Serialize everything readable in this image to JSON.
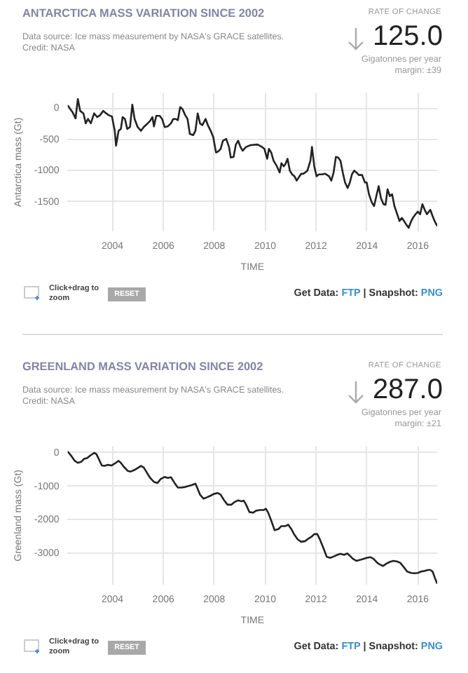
{
  "chart_data": [
    {
      "type": "line",
      "title": "ANTARCTICA MASS VARIATION SINCE 2002",
      "subtitle": "Data source: Ice mass measurement by NASA's GRACE satellites.",
      "xlabel": "TIME",
      "ylabel": "Antarctica mass (Gt)",
      "annotations": [
        "Credit: NASA",
        "RATE OF CHANGE",
        "125.0",
        "Gigatonnes per year",
        "margin: ±39",
        "Click+drag to zoom",
        "RESET",
        "Get Data:",
        "FTP",
        "|",
        "Snapshot:",
        "PNG"
      ],
      "x": [
        2002.24,
        2002.34,
        2002.43,
        2002.55,
        2002.64,
        2002.73,
        2002.86,
        2002.95,
        2003.04,
        2003.15,
        2003.28,
        2003.4,
        2003.51,
        2003.64,
        2003.75,
        2003.86,
        2003.98,
        2004.09,
        2004.14,
        2004.24,
        2004.33,
        2004.4,
        2004.49,
        2004.58,
        2004.69,
        2004.78,
        2004.87,
        2004.99,
        2005.12,
        2005.23,
        2005.36,
        2005.48,
        2005.57,
        2005.63,
        2005.72,
        2005.86,
        2005.95,
        2006.05,
        2006.17,
        2006.3,
        2006.39,
        2006.48,
        2006.57,
        2006.66,
        2006.75,
        2006.86,
        2006.95,
        2007.04,
        2007.17,
        2007.26,
        2007.35,
        2007.44,
        2007.53,
        2007.66,
        2007.75,
        2007.86,
        2007.96,
        2008.07,
        2008.16,
        2008.25,
        2008.34,
        2008.47,
        2008.58,
        2008.65,
        2008.76,
        2008.85,
        2008.94,
        2009.03,
        2009.12,
        2009.25,
        2009.43,
        2009.7,
        2009.88,
        2009.97,
        2010.08,
        2010.15,
        2010.24,
        2010.33,
        2010.46,
        2010.57,
        2010.64,
        2010.73,
        2010.79,
        2010.88,
        2010.97,
        2011.06,
        2011.15,
        2011.24,
        2011.35,
        2011.42,
        2011.51,
        2011.66,
        2011.78,
        2011.84,
        2011.93,
        2012.02,
        2012.11,
        2012.24,
        2012.36,
        2012.51,
        2012.6,
        2012.69,
        2012.78,
        2012.87,
        2012.96,
        2013.05,
        2013.14,
        2013.24,
        2013.33,
        2013.41,
        2013.5,
        2013.59,
        2013.68,
        2013.81,
        2013.92,
        2013.99,
        2014.08,
        2014.19,
        2014.28,
        2014.37,
        2014.46,
        2014.55,
        2014.65,
        2014.73,
        2014.81,
        2014.9,
        2014.99,
        2015.08,
        2015.19,
        2015.28,
        2015.37,
        2015.46,
        2015.55,
        2015.64,
        2015.73,
        2015.82,
        2015.91,
        2016.0,
        2016.09,
        2016.18,
        2016.27,
        2016.36,
        2016.49,
        2016.58,
        2016.67,
        2016.76
      ],
      "series": [
        {
          "color": "#222222",
          "values": [
            50,
            -10,
            -60,
            -160,
            150,
            -40,
            -80,
            -240,
            -170,
            -240,
            -80,
            -140,
            -110,
            -40,
            -80,
            -110,
            -130,
            -360,
            -600,
            -360,
            -330,
            -140,
            -170,
            -330,
            -300,
            60,
            -170,
            -300,
            -360,
            -300,
            -250,
            -200,
            -140,
            -290,
            -120,
            -120,
            -170,
            -300,
            -290,
            -240,
            -170,
            -170,
            -190,
            20,
            -10,
            -110,
            -170,
            -410,
            -430,
            -360,
            -80,
            -240,
            -270,
            -170,
            -270,
            -360,
            -460,
            -710,
            -690,
            -650,
            -520,
            -490,
            -620,
            -790,
            -780,
            -580,
            -520,
            -620,
            -680,
            -620,
            -590,
            -580,
            -620,
            -650,
            -810,
            -650,
            -710,
            -840,
            -930,
            -1030,
            -880,
            -930,
            -900,
            -810,
            -1000,
            -1060,
            -1090,
            -1160,
            -1090,
            -1050,
            -1050,
            -1000,
            -840,
            -620,
            -930,
            -1090,
            -1060,
            -1060,
            -1050,
            -1090,
            -1160,
            -1030,
            -780,
            -790,
            -840,
            -1030,
            -1190,
            -1280,
            -1190,
            -1060,
            -1000,
            -1030,
            -1070,
            -1070,
            -1190,
            -1190,
            -1380,
            -1510,
            -1570,
            -1410,
            -1250,
            -1440,
            -1540,
            -1550,
            -1300,
            -1410,
            -1380,
            -1570,
            -1700,
            -1810,
            -1760,
            -1810,
            -1870,
            -1920,
            -1820,
            -1750,
            -1700,
            -1660,
            -1700,
            -1540,
            -1630,
            -1700,
            -1630,
            -1730,
            -1820,
            -1890
          ]
        }
      ],
      "xlim": [
        2002.24,
        2016.76
      ],
      "xticks": [
        2004,
        2006,
        2008,
        2010,
        2012,
        2014,
        2016
      ],
      "ylim": [
        -1980,
        250
      ],
      "yticks": [
        0,
        -500,
        -1000,
        -1500
      ],
      "grid": true
    },
    {
      "type": "line",
      "title": "GREENLAND MASS VARIATION SINCE 2002",
      "subtitle": "Data source: Ice mass measurement by NASA's GRACE satellites.",
      "xlabel": "TIME",
      "ylabel": "Greenland mass (Gt)",
      "annotations": [
        "Credit: NASA",
        "RATE OF CHANGE",
        "287.0",
        "Gigatonnes per year",
        "margin: ±21",
        "Click+drag to zoom",
        "RESET",
        "Get Data:",
        "FTP",
        "|",
        "Snapshot:",
        "PNG"
      ],
      "x": [
        2002.24,
        2002.37,
        2002.52,
        2002.64,
        2002.77,
        2002.88,
        2003.0,
        2003.13,
        2003.28,
        2003.37,
        2003.46,
        2003.58,
        2003.69,
        2003.82,
        2003.96,
        2004.09,
        2004.24,
        2004.33,
        2004.45,
        2004.6,
        2004.72,
        2004.87,
        2005.0,
        2005.12,
        2005.23,
        2005.36,
        2005.48,
        2005.63,
        2005.77,
        2005.9,
        2006.05,
        2006.17,
        2006.3,
        2006.44,
        2006.57,
        2006.71,
        2006.86,
        2006.99,
        2007.13,
        2007.26,
        2007.35,
        2007.44,
        2007.58,
        2007.71,
        2007.86,
        2007.98,
        2008.13,
        2008.25,
        2008.38,
        2008.52,
        2008.67,
        2008.8,
        2008.94,
        2009.07,
        2009.16,
        2009.25,
        2009.38,
        2009.52,
        2009.65,
        2009.79,
        2009.94,
        2010.03,
        2010.12,
        2010.24,
        2010.37,
        2010.52,
        2010.64,
        2010.79,
        2010.91,
        2011.02,
        2011.15,
        2011.28,
        2011.42,
        2011.57,
        2011.69,
        2011.82,
        2011.93,
        2012.05,
        2012.14,
        2012.27,
        2012.42,
        2012.56,
        2012.69,
        2012.83,
        2012.96,
        2013.1,
        2013.23,
        2013.32,
        2013.45,
        2013.59,
        2013.74,
        2013.86,
        2013.99,
        2014.14,
        2014.26,
        2014.41,
        2014.53,
        2014.64,
        2014.77,
        2014.9,
        2015.04,
        2015.19,
        2015.31,
        2015.44,
        2015.58,
        2015.73,
        2015.86,
        2016.0,
        2016.13,
        2016.27,
        2016.4,
        2016.49,
        2016.58,
        2016.67,
        2016.76
      ],
      "series": [
        {
          "color": "#222222",
          "values": [
            40,
            -80,
            -240,
            -300,
            -270,
            -180,
            -160,
            -80,
            0,
            -40,
            -180,
            -380,
            -390,
            -360,
            -380,
            -320,
            -240,
            -300,
            -420,
            -540,
            -560,
            -510,
            -450,
            -390,
            -440,
            -600,
            -750,
            -870,
            -900,
            -780,
            -720,
            -750,
            -730,
            -900,
            -1040,
            -1040,
            -1020,
            -990,
            -960,
            -920,
            -1080,
            -1250,
            -1370,
            -1330,
            -1280,
            -1230,
            -1200,
            -1250,
            -1410,
            -1550,
            -1550,
            -1470,
            -1420,
            -1450,
            -1430,
            -1550,
            -1770,
            -1790,
            -1730,
            -1710,
            -1710,
            -1670,
            -1790,
            -2030,
            -2310,
            -2280,
            -2190,
            -2190,
            -2150,
            -2270,
            -2450,
            -2590,
            -2660,
            -2640,
            -2570,
            -2510,
            -2430,
            -2430,
            -2570,
            -2810,
            -3110,
            -3140,
            -3100,
            -3050,
            -3020,
            -3050,
            -3010,
            -3070,
            -3170,
            -3230,
            -3200,
            -3170,
            -3140,
            -3120,
            -3170,
            -3290,
            -3350,
            -3380,
            -3310,
            -3260,
            -3230,
            -3250,
            -3290,
            -3410,
            -3550,
            -3590,
            -3600,
            -3590,
            -3550,
            -3530,
            -3500,
            -3500,
            -3550,
            -3740,
            -3910
          ]
        }
      ],
      "xlim": [
        2002.24,
        2016.76
      ],
      "xticks": [
        2004,
        2006,
        2008,
        2010,
        2012,
        2014,
        2016
      ],
      "ylim": [
        -3950,
        200
      ],
      "yticks": [
        0,
        -1000,
        -2000,
        -3000
      ],
      "grid": true
    }
  ]
}
